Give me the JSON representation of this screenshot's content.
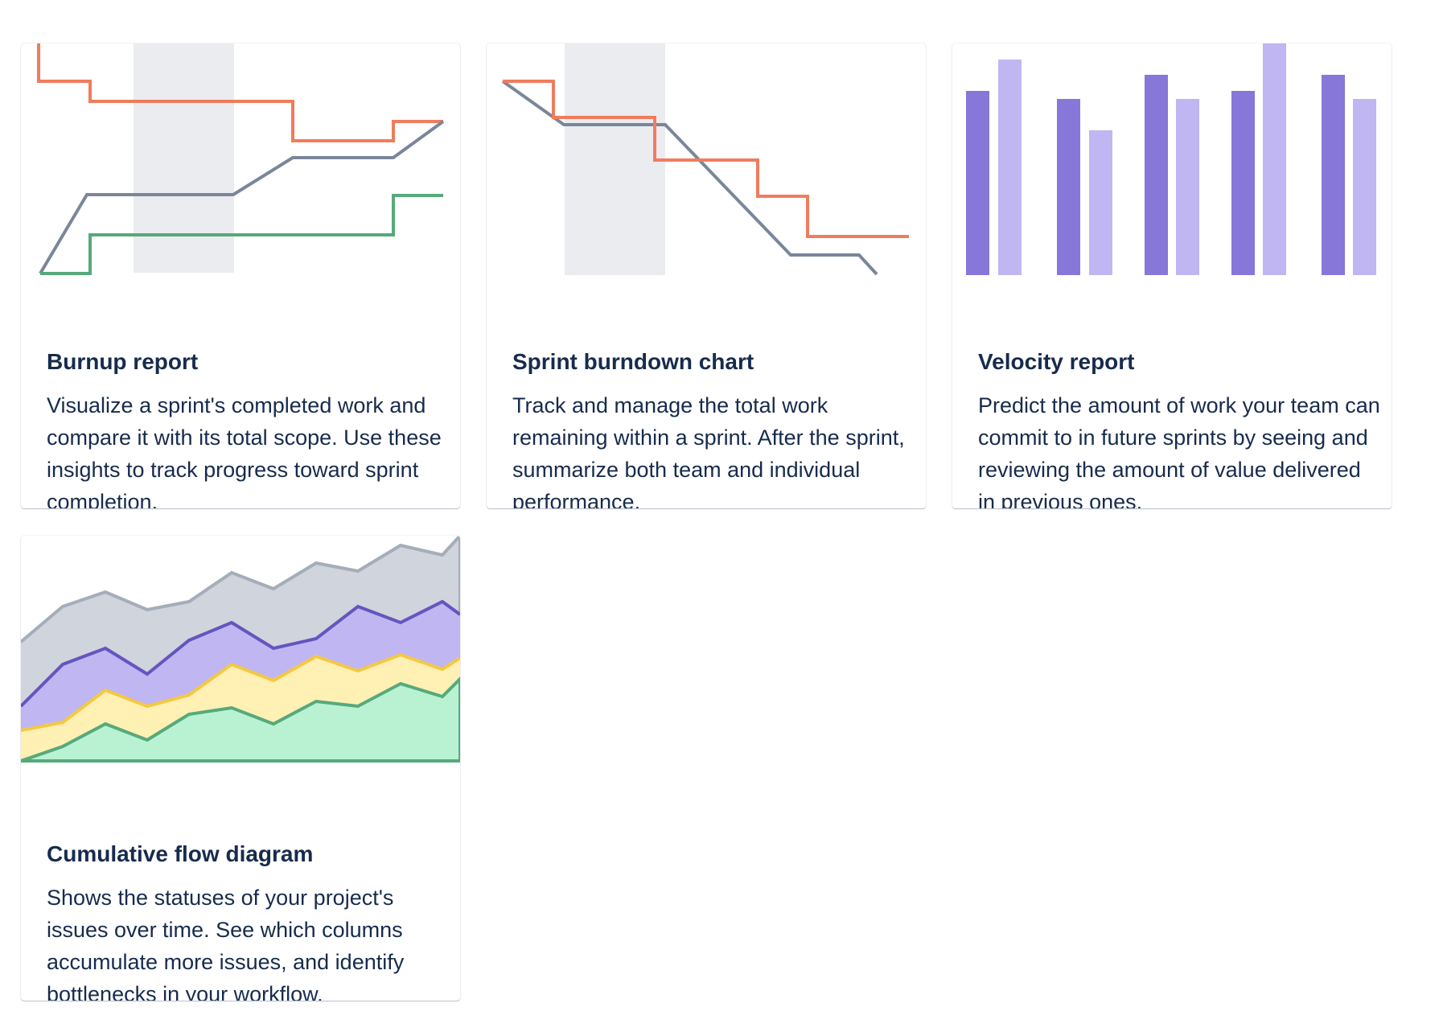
{
  "colors": {
    "orange": "#f07c5c",
    "gray_line": "#7a869a",
    "green": "#57a97b",
    "highlight": "#ebecf0",
    "purple_dark": "#8777d9",
    "purple_light": "#c0b6f2",
    "cfd_gray_fill": "#d0d4dc",
    "cfd_gray_line": "#a5adba",
    "cfd_purple_fill": "#c0b6f2",
    "cfd_purple_line": "#6554c0",
    "cfd_yellow_fill": "#fff0b3",
    "cfd_yellow_line": "#f5c842",
    "cfd_green_fill": "#b9f2d3",
    "cfd_green_line": "#57a97b"
  },
  "cards": [
    {
      "id": "burnup",
      "illustration": "burnup-chart-illustration",
      "title": "Burnup report",
      "description": "Visualize a sprint's completed work and compare it with its total scope. Use these insights to track progress toward sprint completion."
    },
    {
      "id": "burndown",
      "illustration": "burndown-chart-illustration",
      "title": "Sprint burndown chart",
      "description": "Track and manage the total work remaining within a sprint. After the sprint, summarize both team and individual performance."
    },
    {
      "id": "velocity",
      "illustration": "velocity-chart-illustration",
      "title": "Velocity report",
      "description": "Predict the amount of work your team can commit to in future sprints by seeing and reviewing the amount of value delivered in previous ones."
    },
    {
      "id": "cfd",
      "illustration": "cumulative-flow-chart-illustration",
      "title": "Cumulative flow diagram",
      "description": "Shows the statuses of your project's issues over time. See which columns accumulate more issues, and identify bottlenecks in your workflow."
    }
  ]
}
